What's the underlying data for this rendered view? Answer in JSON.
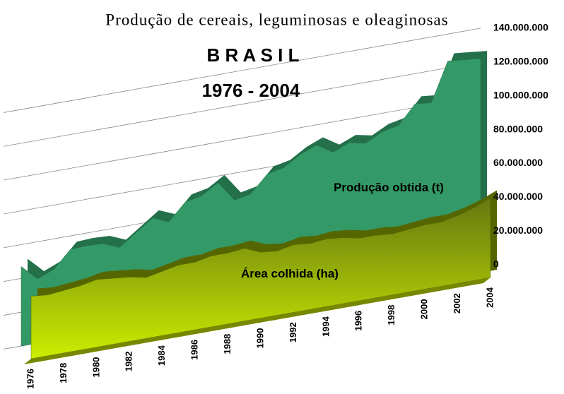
{
  "chart_data": {
    "type": "area3d",
    "title": "Produção de cereais, leguminosas e oleaginosas",
    "annotations": [
      "B R A S I L",
      "1976 - 2004"
    ],
    "categories": [
      "1976",
      null,
      "1978",
      null,
      "1980",
      null,
      "1982",
      null,
      "1984",
      null,
      "1986",
      null,
      "1988",
      null,
      "1990",
      null,
      "1992",
      null,
      "1994",
      null,
      "1996",
      null,
      "1998",
      null,
      "2000",
      null,
      "2002",
      null,
      "2004"
    ],
    "series": [
      {
        "name": "Produção obtida (t)",
        "color": "#339966",
        "values": [
          47000000,
          38000000,
          42000000,
          52000000,
          52500000,
          52000000,
          48000000,
          55000000,
          62000000,
          58000000,
          68000000,
          70000000,
          76000000,
          64000000,
          66000000,
          76000000,
          78000000,
          84000000,
          88000000,
          82000000,
          86000000,
          84000000,
          89000000,
          91000000,
          102000000,
          101000000,
          124000000,
          123000000,
          122000000
        ]
      },
      {
        "name": "Área colhida (ha)",
        "color": "#99aa00",
        "values": [
          37000000,
          36000000,
          37000000,
          38000000,
          40000000,
          39000000,
          38000000,
          36000000,
          38000000,
          40000000,
          40000000,
          42000000,
          42000000,
          43000000,
          39000000,
          38000000,
          40000000,
          39000000,
          40000000,
          39000000,
          37000000,
          37000000,
          36000000,
          37000000,
          38000000,
          38000000,
          40000000,
          43000000,
          47000000
        ]
      }
    ],
    "ylim": [
      0,
      140000000
    ],
    "yticks": [
      0,
      {
        "value": 20000000,
        "label": "20.000.000"
      },
      {
        "value": 40000000,
        "label": "40.000.000"
      },
      {
        "value": 60000000,
        "label": "60.000.000"
      },
      {
        "value": 80000000,
        "label": "80.000.000"
      },
      {
        "value": 100000000,
        "label": "100.000.000"
      },
      {
        "value": 120000000,
        "label": "120.000.000"
      },
      {
        "value": 140000000,
        "label": "140.000.000"
      }
    ],
    "grid": true
  }
}
